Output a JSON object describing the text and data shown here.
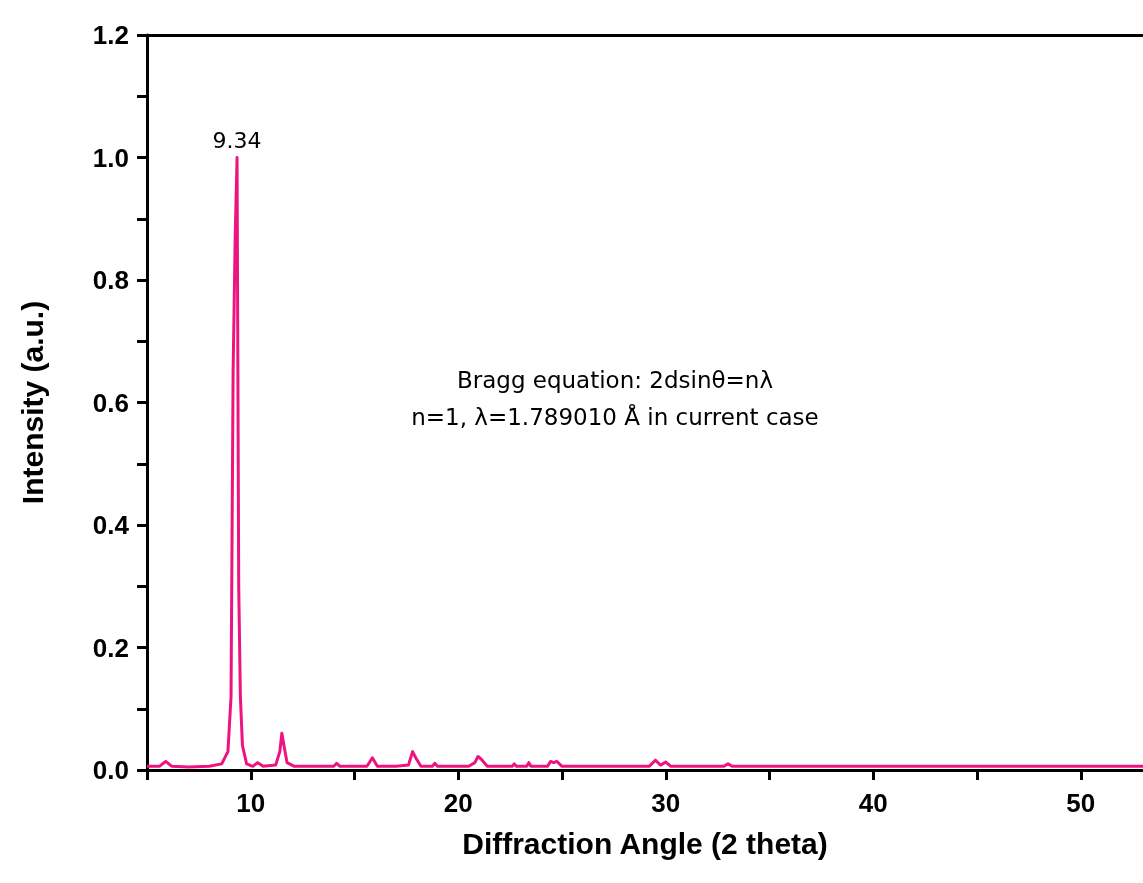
{
  "chart_data": {
    "type": "line",
    "xlabel": "Diffraction Angle (2 theta)",
    "ylabel": "Intensity (a.u.)",
    "x": [
      5,
      5.6,
      5.9,
      6.2,
      7,
      8,
      8.6,
      8.9,
      9.05,
      9.15,
      9.25,
      9.34,
      9.42,
      9.5,
      9.6,
      9.8,
      10.1,
      10.33,
      10.6,
      11.2,
      11.4,
      11.5,
      11.6,
      11.75,
      12.1,
      13,
      14.0,
      14.14,
      14.3,
      15.6,
      15.86,
      16.1,
      17,
      17.6,
      17.8,
      17.95,
      18.2,
      18.75,
      18.87,
      19,
      20.5,
      20.8,
      20.95,
      21.1,
      21.4,
      22.6,
      22.7,
      22.8,
      23.3,
      23.4,
      23.5,
      24.3,
      24.45,
      24.6,
      24.75,
      25,
      29.2,
      29.5,
      29.75,
      30.0,
      30.25,
      32.8,
      33.0,
      33.2,
      40,
      53
    ],
    "series": [
      {
        "color": "#ee1480",
        "values": [
          0.006,
          0.006,
          0.014,
          0.006,
          0.005,
          0.006,
          0.01,
          0.03,
          0.12,
          0.65,
          0.87,
          1.0,
          0.3,
          0.12,
          0.04,
          0.01,
          0.006,
          0.012,
          0.006,
          0.008,
          0.03,
          0.06,
          0.04,
          0.012,
          0.006,
          0.006,
          0.006,
          0.011,
          0.006,
          0.006,
          0.02,
          0.006,
          0.006,
          0.008,
          0.03,
          0.02,
          0.006,
          0.006,
          0.011,
          0.006,
          0.006,
          0.012,
          0.022,
          0.018,
          0.006,
          0.006,
          0.01,
          0.006,
          0.006,
          0.012,
          0.006,
          0.006,
          0.014,
          0.012,
          0.014,
          0.006,
          0.006,
          0.016,
          0.008,
          0.013,
          0.006,
          0.006,
          0.01,
          0.006,
          0.006,
          0.006
        ]
      }
    ],
    "xlim": [
      5,
      53
    ],
    "xticks": [
      10,
      20,
      30,
      40,
      50
    ],
    "ylim": [
      0,
      1.2
    ],
    "yticks": [
      {
        "value": 0,
        "label": "0.0"
      },
      0.2,
      0.4,
      0.6,
      0.8,
      {
        "value": 1,
        "label": "1.0"
      },
      1.2
    ],
    "annotations": [
      {
        "text": "9.34",
        "x": 9.34,
        "y": 1.0
      },
      "Bragg equation: 2dsinθ=nλ",
      "n=1, λ=1.789010 Å in current case"
    ],
    "grid": false,
    "marker": "none",
    "line_style": "solid"
  }
}
